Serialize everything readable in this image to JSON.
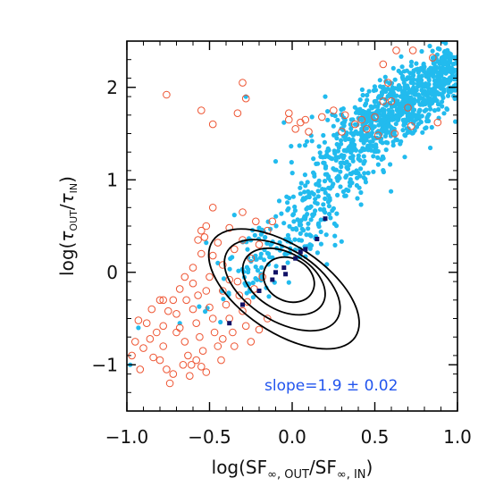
{
  "chart_data": {
    "type": "scatter",
    "title": "",
    "xlabel": "log(SF∞, OUT/SF∞, IN)",
    "xlabel_parts": {
      "prefix": "log(SF",
      "sub1": "∞, OUT",
      "mid": "/SF",
      "sub2": "∞, IN",
      "suffix": ")"
    },
    "ylabel": "log(τOUT/τIN)",
    "ylabel_parts": {
      "prefix": "log(",
      "tau1": "τ",
      "sub1": "OUT",
      "slash": "/",
      "tau2": "τ",
      "sub2": "IN",
      "suffix": ")"
    },
    "xlim": [
      -1.0,
      1.0
    ],
    "ylim": [
      -1.5,
      2.5
    ],
    "xticks": [
      -1.0,
      -0.5,
      0.0,
      0.5,
      1.0
    ],
    "xtick_labels": [
      "−1.0",
      "−0.5",
      "0.0",
      "0.5",
      "1.0"
    ],
    "yticks": [
      -1,
      0,
      1,
      2
    ],
    "ytick_labels": [
      "−1",
      "0",
      "1",
      "2"
    ],
    "grid": false,
    "annotation": {
      "text": "slope=1.9 ± 0.02",
      "color": "#2255ee"
    },
    "colors": {
      "filled_points": "#22bbee",
      "open_circles": "#ee5533",
      "contours": "#000000",
      "binned": "#111166"
    },
    "series": [
      {
        "kind": "filled-dots",
        "clusters": [
          {
            "cx": 0.68,
            "cy": 1.82,
            "sx": 0.17,
            "sy": 0.25,
            "n": 520,
            "rho": 0.55
          },
          {
            "cx": 0.38,
            "cy": 1.35,
            "sx": 0.16,
            "sy": 0.3,
            "n": 260,
            "rho": 0.6
          },
          {
            "cx": 0.08,
            "cy": 0.55,
            "sx": 0.14,
            "sy": 0.3,
            "n": 150,
            "rho": 0.6
          },
          {
            "cx": -0.25,
            "cy": 0.05,
            "sx": 0.1,
            "sy": 0.25,
            "n": 60,
            "rho": 0.6
          },
          {
            "cx": 0.92,
            "cy": 2.15,
            "sx": 0.06,
            "sy": 0.15,
            "n": 120,
            "rho": 0.3
          }
        ],
        "extra_points": [
          [
            -0.93,
            -0.6
          ],
          [
            -0.98,
            -1.0
          ],
          [
            -0.68,
            -0.55
          ],
          [
            -0.52,
            0.32
          ],
          [
            -0.45,
            0.1
          ],
          [
            -0.35,
            0.62
          ],
          [
            -0.2,
            0.48
          ],
          [
            -0.1,
            1.2
          ],
          [
            0.05,
            0.85
          ],
          [
            -0.28,
            1.9
          ],
          [
            -0.05,
            1.62
          ],
          [
            0.12,
            1.68
          ],
          [
            0.12,
            1.42
          ],
          [
            0.25,
            1.58
          ],
          [
            0.3,
            1.7
          ],
          [
            0.2,
            1.9
          ]
        ]
      },
      {
        "kind": "open-circles",
        "points": [
          [
            -0.93,
            -0.52
          ],
          [
            -0.88,
            -0.55
          ],
          [
            -0.82,
            -0.65
          ],
          [
            -0.78,
            -0.8
          ],
          [
            -0.8,
            -0.95
          ],
          [
            -0.76,
            -1.05
          ],
          [
            -0.74,
            -1.2
          ],
          [
            -0.72,
            -0.3
          ],
          [
            -0.7,
            -0.45
          ],
          [
            -0.68,
            -0.6
          ],
          [
            -0.65,
            -0.75
          ],
          [
            -0.63,
            -0.9
          ],
          [
            -0.61,
            -1.0
          ],
          [
            -0.6,
            -0.4
          ],
          [
            -0.58,
            -0.55
          ],
          [
            -0.56,
            -0.7
          ],
          [
            -0.54,
            -0.85
          ],
          [
            -0.52,
            -1.08
          ],
          [
            -0.5,
            -0.38
          ],
          [
            -0.48,
            -0.5
          ],
          [
            -0.47,
            -0.65
          ],
          [
            -0.45,
            -0.8
          ],
          [
            -0.43,
            -0.95
          ],
          [
            -0.42,
            -0.2
          ],
          [
            -0.4,
            -0.35
          ],
          [
            -0.38,
            -0.5
          ],
          [
            -0.36,
            -0.65
          ],
          [
            -0.35,
            -0.8
          ],
          [
            -0.33,
            -0.1
          ],
          [
            -0.32,
            -0.25
          ],
          [
            -0.3,
            -0.42
          ],
          [
            -0.28,
            -0.58
          ],
          [
            -0.86,
            -0.72
          ],
          [
            -0.84,
            -0.92
          ],
          [
            -0.9,
            -0.82
          ],
          [
            -0.95,
            -0.75
          ],
          [
            -0.97,
            -0.9
          ],
          [
            -0.72,
            -1.1
          ],
          [
            -0.66,
            -1.0
          ],
          [
            -0.62,
            -1.12
          ],
          [
            -0.58,
            -0.95
          ],
          [
            -0.55,
            -1.02
          ],
          [
            -0.52,
            -0.2
          ],
          [
            -0.5,
            -0.05
          ],
          [
            -0.48,
            0.18
          ],
          [
            -0.45,
            0.32
          ],
          [
            -0.42,
            0.08
          ],
          [
            -0.38,
            -0.08
          ],
          [
            -0.6,
            -0.12
          ],
          [
            -0.57,
            -0.25
          ],
          [
            -0.64,
            -0.3
          ],
          [
            -0.68,
            -0.18
          ],
          [
            -0.75,
            -0.42
          ],
          [
            -0.78,
            -0.58
          ],
          [
            -0.7,
            -0.65
          ],
          [
            -0.6,
            0.05
          ],
          [
            -0.55,
            0.2
          ],
          [
            -0.65,
            -0.05
          ],
          [
            -0.85,
            -0.4
          ],
          [
            -0.8,
            -0.3
          ],
          [
            -0.35,
            0.25
          ],
          [
            -0.3,
            0.35
          ],
          [
            -0.25,
            0.15
          ],
          [
            -0.2,
            0.3
          ],
          [
            -0.15,
            0.45
          ],
          [
            -0.22,
            0.55
          ],
          [
            -0.38,
            0.48
          ],
          [
            -0.27,
            -0.32
          ],
          [
            -0.23,
            -0.18
          ],
          [
            -0.18,
            -0.05
          ],
          [
            -0.52,
            0.5
          ],
          [
            -0.48,
            0.7
          ],
          [
            -0.57,
            0.35
          ],
          [
            -0.3,
            0.65
          ],
          [
            -0.12,
            0.55
          ],
          [
            -0.2,
            -0.62
          ],
          [
            -0.42,
            -0.72
          ],
          [
            -0.25,
            -0.75
          ],
          [
            -0.15,
            -0.5
          ],
          [
            -0.76,
            1.92
          ],
          [
            -0.55,
            1.75
          ],
          [
            -0.3,
            2.05
          ],
          [
            -0.28,
            1.88
          ],
          [
            -0.02,
            1.65
          ],
          [
            -0.02,
            1.72
          ],
          [
            0.05,
            1.62
          ],
          [
            0.02,
            1.55
          ],
          [
            0.1,
            1.52
          ],
          [
            0.08,
            1.65
          ],
          [
            0.18,
            1.68
          ],
          [
            0.25,
            1.75
          ],
          [
            0.32,
            1.7
          ],
          [
            0.3,
            1.52
          ],
          [
            0.38,
            1.6
          ],
          [
            0.42,
            1.65
          ],
          [
            0.45,
            1.55
          ],
          [
            0.52,
            1.48
          ],
          [
            0.5,
            1.68
          ],
          [
            0.62,
            1.5
          ],
          [
            0.55,
            1.85
          ],
          [
            0.6,
            1.85
          ],
          [
            0.72,
            1.58
          ],
          [
            0.85,
            2.32
          ],
          [
            0.73,
            2.4
          ],
          [
            0.63,
            2.4
          ],
          [
            0.55,
            2.25
          ],
          [
            0.58,
            2.05
          ],
          [
            0.88,
            1.62
          ],
          [
            -0.33,
            1.72
          ],
          [
            -0.48,
            1.6
          ],
          [
            0.7,
            1.78
          ],
          [
            -0.92,
            -1.05
          ],
          [
            -0.78,
            -0.3
          ],
          [
            -0.53,
            0.38
          ],
          [
            -0.55,
            0.45
          ]
        ]
      },
      {
        "kind": "contours",
        "ellipses": [
          {
            "cx": -0.02,
            "cy": -0.08,
            "rx": 0.16,
            "ry": 0.42,
            "deg": 28
          },
          {
            "cx": -0.05,
            "cy": -0.1,
            "rx": 0.27,
            "ry": 0.56,
            "deg": 30
          },
          {
            "cx": -0.06,
            "cy": -0.14,
            "rx": 0.39,
            "ry": 0.7,
            "deg": 32
          },
          {
            "cx": -0.05,
            "cy": -0.18,
            "rx": 0.52,
            "ry": 0.85,
            "deg": 34
          }
        ]
      },
      {
        "kind": "binned-means",
        "points": [
          [
            -0.38,
            -0.55
          ],
          [
            -0.3,
            -0.35
          ],
          [
            -0.2,
            -0.2
          ],
          [
            -0.12,
            -0.08
          ],
          [
            -0.05,
            0.05
          ],
          [
            0.02,
            0.15
          ],
          [
            0.08,
            0.25
          ],
          [
            0.15,
            0.36
          ],
          [
            0.2,
            0.58
          ],
          [
            -0.1,
            0.0
          ],
          [
            -0.04,
            -0.02
          ],
          [
            0.05,
            0.22
          ]
        ]
      }
    ]
  }
}
